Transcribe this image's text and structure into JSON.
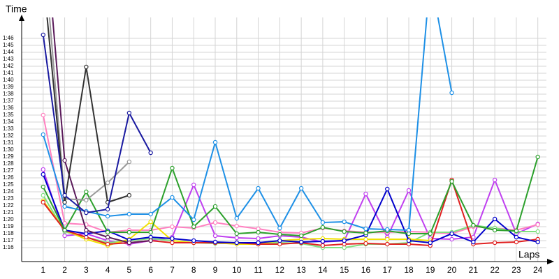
{
  "chart_data": {
    "type": "line",
    "y_label": "Time",
    "x_label": "Laps",
    "x": [
      1,
      2,
      3,
      4,
      5,
      6,
      7,
      8,
      9,
      10,
      11,
      12,
      13,
      14,
      15,
      16,
      17,
      18,
      19,
      20,
      21,
      22,
      23,
      24
    ],
    "xlim": [
      0,
      24.4
    ],
    "xticks": [
      1,
      2,
      3,
      4,
      5,
      6,
      7,
      8,
      9,
      10,
      11,
      12,
      13,
      14,
      15,
      16,
      17,
      18,
      19,
      20,
      21,
      22,
      23,
      24
    ],
    "ylim": [
      74,
      109
    ],
    "yticks": [
      {
        "value": 76,
        "label": "1:16"
      },
      {
        "value": 77,
        "label": "1:17"
      },
      {
        "value": 78,
        "label": "1:18"
      },
      {
        "value": 79,
        "label": "1:19"
      },
      {
        "value": 80,
        "label": "1:20"
      },
      {
        "value": 81,
        "label": "1:21"
      },
      {
        "value": 82,
        "label": "1:22"
      },
      {
        "value": 83,
        "label": "1:23"
      },
      {
        "value": 84,
        "label": "1:24"
      },
      {
        "value": 85,
        "label": "1:25"
      },
      {
        "value": 86,
        "label": "1:26"
      },
      {
        "value": 87,
        "label": "1:27"
      },
      {
        "value": 88,
        "label": "1:28"
      },
      {
        "value": 89,
        "label": "1:29"
      },
      {
        "value": 90,
        "label": "1:30"
      },
      {
        "value": 91,
        "label": "1:31"
      },
      {
        "value": 92,
        "label": "1:32"
      },
      {
        "value": 93,
        "label": "1:33"
      },
      {
        "value": 94,
        "label": "1:34"
      },
      {
        "value": 95,
        "label": "1:35"
      },
      {
        "value": 96,
        "label": "1:36"
      },
      {
        "value": 97,
        "label": "1:37"
      },
      {
        "value": 98,
        "label": "1:38"
      },
      {
        "value": 99,
        "label": "1:39"
      },
      {
        "value": 100,
        "label": "1:40"
      },
      {
        "value": 101,
        "label": "1:41"
      },
      {
        "value": 102,
        "label": "1:42"
      },
      {
        "value": 103,
        "label": "1:43"
      },
      {
        "value": 104,
        "label": "1:44"
      },
      {
        "value": 105,
        "label": "1:45"
      },
      {
        "value": 106,
        "label": "1:46"
      }
    ],
    "grid": true,
    "series": [
      {
        "color": "#c040f0",
        "values": [
          87.2,
          77.7,
          78,
          77,
          76.5,
          77,
          77.5,
          85,
          77.7,
          77.4,
          77.3,
          77.7,
          77.5,
          76.8,
          77,
          83.7,
          77.5,
          84.2,
          77.3,
          77.2,
          77.5,
          85.7,
          78,
          79.4
        ]
      },
      {
        "color": "#ff80c0",
        "values": [
          95,
          79.5,
          79.3,
          78.2,
          78.5,
          78.5,
          79,
          78.8,
          79.6,
          79.1,
          78.7,
          78.2,
          78.1,
          78.8,
          78.4,
          78.2,
          78.2,
          78.3,
          78.2,
          78,
          79,
          78.8,
          78.5,
          79.3
        ]
      },
      {
        "color": "#80e080",
        "values": [
          83.5,
          78.3,
          77.5,
          76.7,
          77,
          77.3,
          77,
          76.7,
          76.6,
          76.6,
          76.7,
          76.7,
          76.6,
          76,
          76,
          76.5,
          76.5,
          76.7,
          78.2,
          78.2,
          79.2,
          78.8,
          78.3,
          78.3
        ]
      },
      {
        "color": "#f0e000",
        "values": [
          82.7,
          78.5,
          77.2,
          76.3,
          77.2,
          79.7,
          77,
          76.7,
          76.7,
          76.5,
          76.5,
          77,
          77.2,
          77.3,
          77.2,
          77.2,
          77.2,
          77.2,
          77,
          null,
          null,
          null,
          null,
          null
        ]
      },
      {
        "color": "#e02020",
        "values": [
          82.5,
          78.5,
          77.5,
          76.5,
          76.7,
          77,
          76.7,
          76.7,
          76.7,
          76.7,
          76.5,
          76.5,
          76.7,
          76.3,
          76.5,
          76.6,
          76.5,
          76.5,
          76.3,
          85.7,
          76.5,
          76.7,
          76.8,
          77.2
        ]
      },
      {
        "color": "#0000cc",
        "values": [
          86.5,
          78.5,
          78,
          78.4,
          77.1,
          77.5,
          77.3,
          77,
          76.8,
          76.7,
          76.7,
          77,
          76.8,
          76.9,
          77,
          77.8,
          84.4,
          77,
          76.7,
          78,
          76.8,
          80.1,
          77.5,
          76.8
        ]
      },
      {
        "color": "#2ca02c",
        "values": [
          84.7,
          78.5,
          84,
          78.2,
          78.2,
          78.2,
          87.4,
          79,
          81.9,
          78,
          78.2,
          77.9,
          77.7,
          78.9,
          78.3,
          78.1,
          78.4,
          78,
          78,
          85.5,
          79.2,
          78.5,
          78.4,
          89
        ]
      },
      {
        "color": "#1e90e6",
        "values": [
          92.2,
          81.9,
          81.2,
          80.5,
          80.8,
          80.8,
          83.2,
          80,
          91.1,
          80.2,
          84.5,
          78.8,
          84.5,
          79.6,
          79.7,
          78.7,
          78.6,
          78.5,
          115,
          98.2,
          null,
          null,
          null,
          null
        ]
      },
      {
        "color": "#5a1a5a",
        "values": [
          125,
          88.5,
          78.5,
          77.5,
          76.7,
          77,
          null,
          null,
          null,
          null,
          null,
          null,
          null,
          null,
          null,
          null,
          null,
          null,
          null,
          null,
          null,
          null,
          null,
          null
        ]
      },
      {
        "color": "#999999",
        "values": [
          120,
          83,
          82.8,
          85.3,
          88.3,
          null,
          null,
          null,
          null,
          null,
          null,
          null,
          null,
          null,
          null,
          null,
          null,
          null,
          null,
          null,
          null,
          null,
          null,
          null
        ]
      },
      {
        "color": "#333333",
        "values": [
          115,
          82.5,
          101.9,
          82.5,
          83.5,
          null,
          null,
          null,
          null,
          null,
          null,
          null,
          null,
          null,
          null,
          null,
          null,
          null,
          null,
          null,
          null,
          null,
          null,
          null
        ]
      },
      {
        "color": "#1a1aa0",
        "values": [
          106.5,
          83.5,
          81,
          81.5,
          95.3,
          89.6,
          null,
          null,
          null,
          null,
          null,
          null,
          null,
          null,
          null,
          null,
          null,
          null,
          null,
          null,
          null,
          null,
          null,
          null
        ]
      }
    ]
  }
}
